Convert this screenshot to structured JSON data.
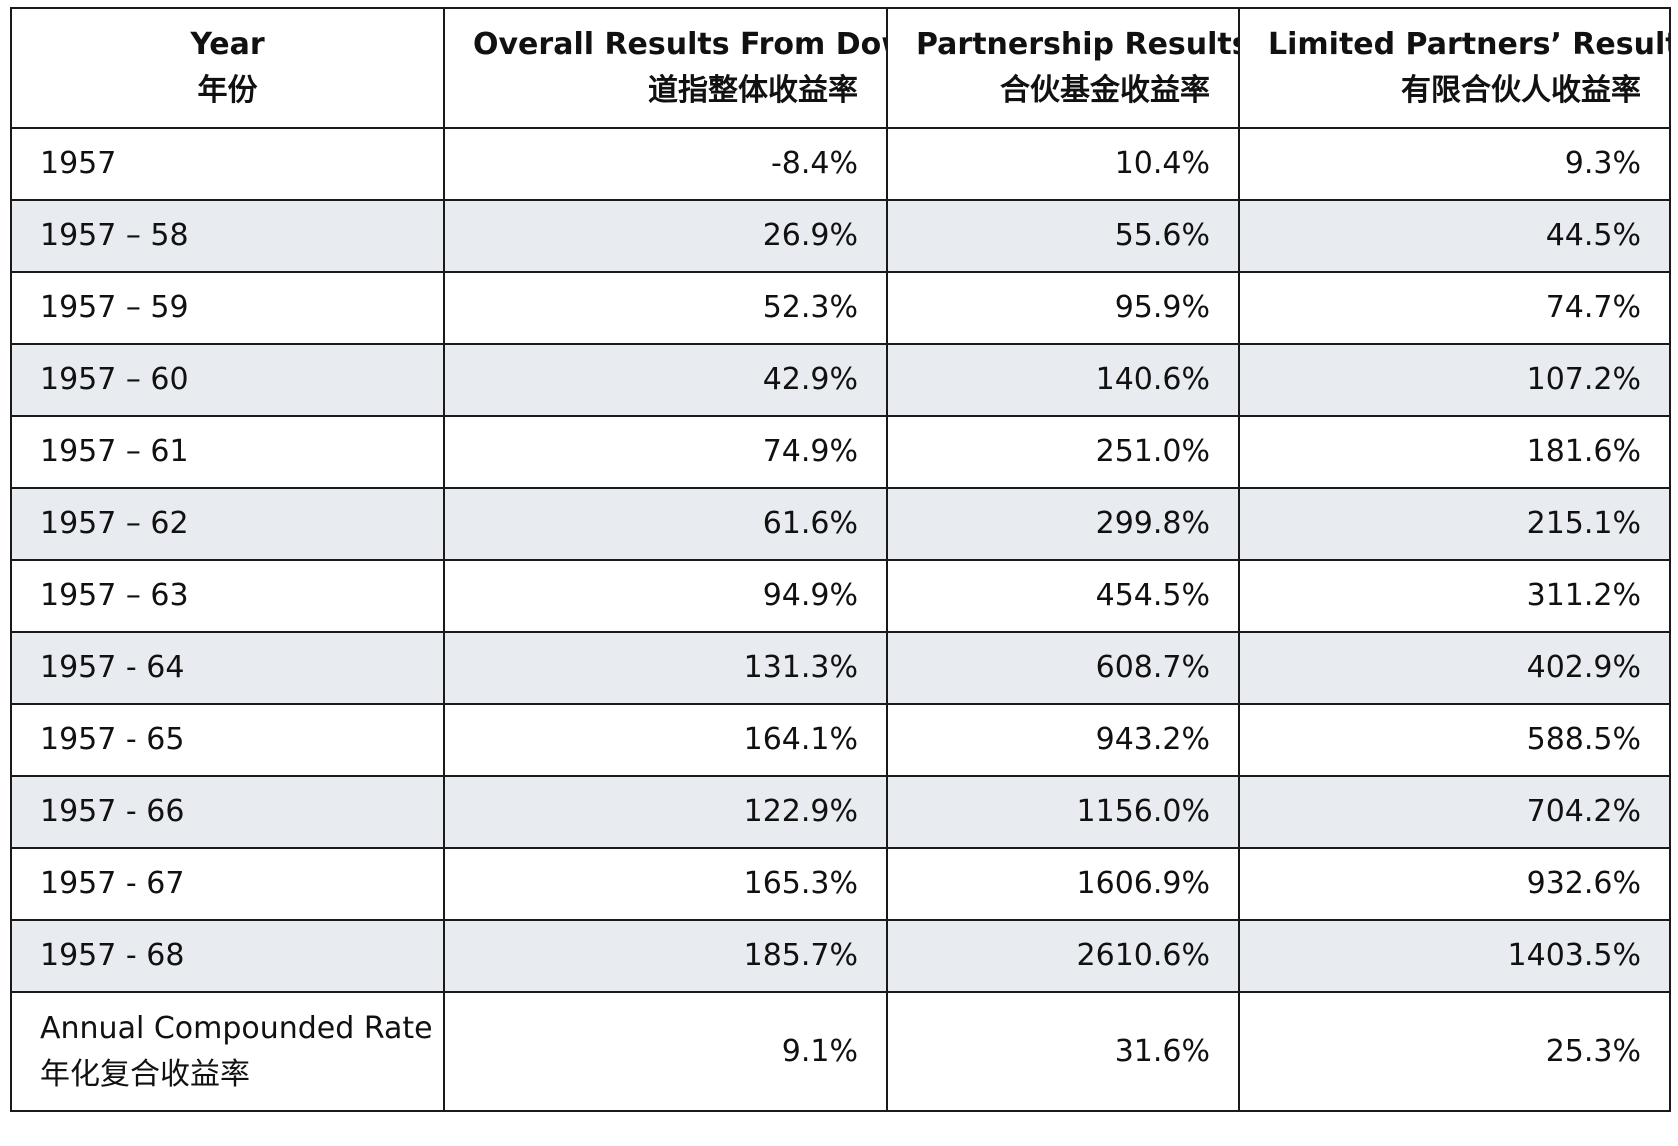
{
  "headers": [
    {
      "en": "Year",
      "zh": "年份"
    },
    {
      "en": "Overall Results From Dow",
      "zh": "道指整体收益率"
    },
    {
      "en": "Partnership Results",
      "zh": "合伙基金收益率"
    },
    {
      "en": "Limited Partners’ Results",
      "zh": "有限合伙人收益率"
    }
  ],
  "rows": [
    {
      "year": "1957",
      "dow": "-8.4%",
      "partnership": "10.4%",
      "limited": "9.3%"
    },
    {
      "year": "1957 – 58",
      "dow": "26.9%",
      "partnership": "55.6%",
      "limited": "44.5%"
    },
    {
      "year": "1957 – 59",
      "dow": "52.3%",
      "partnership": "95.9%",
      "limited": "74.7%"
    },
    {
      "year": "1957 – 60",
      "dow": "42.9%",
      "partnership": "140.6%",
      "limited": "107.2%"
    },
    {
      "year": "1957 – 61",
      "dow": "74.9%",
      "partnership": "251.0%",
      "limited": "181.6%"
    },
    {
      "year": "1957 – 62",
      "dow": "61.6%",
      "partnership": "299.8%",
      "limited": "215.1%"
    },
    {
      "year": "1957 – 63",
      "dow": "94.9%",
      "partnership": "454.5%",
      "limited": "311.2%"
    },
    {
      "year": "1957 - 64",
      "dow": "131.3%",
      "partnership": "608.7%",
      "limited": "402.9%"
    },
    {
      "year": "1957 - 65",
      "dow": "164.1%",
      "partnership": "943.2%",
      "limited": "588.5%"
    },
    {
      "year": "1957 - 66",
      "dow": "122.9%",
      "partnership": "1156.0%",
      "limited": "704.2%"
    },
    {
      "year": "1957 - 67",
      "dow": "165.3%",
      "partnership": "1606.9%",
      "limited": "932.6%"
    },
    {
      "year": "1957 - 68",
      "dow": "185.7%",
      "partnership": "2610.6%",
      "limited": "1403.5%"
    }
  ],
  "summary": {
    "label_en": "Annual Compounded Rate",
    "label_zh": "年化复合收益率",
    "dow": "9.1%",
    "partnership": "31.6%",
    "limited": "25.3%"
  }
}
